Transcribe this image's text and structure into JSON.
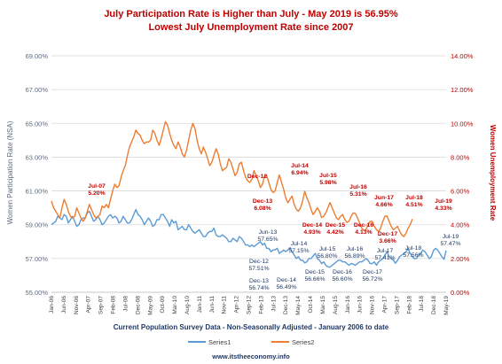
{
  "chart_data": {
    "type": "line",
    "title": "July Participation Rate is Higher than July - May 2019 is 56.95%",
    "subtitle": "Lowest July Unemployment Rate since 2007",
    "xlabel": "Current Population Survey Data - Non-Seasonally Adjusted - January 2006 to date",
    "ylabel_left": "Women Participation Rate (NSA)",
    "ylabel_right": "Women Unemployment Rate",
    "source_note": "www.itstheeconomy.info",
    "colors": {
      "title": "#c00000",
      "series1": "#5b9bd5",
      "series2": "#ed7d31",
      "annotation_blue": "#1f3864",
      "annotation_red": "#c00000",
      "grid": "#d9d9d9",
      "axis_left": "#5a6b86",
      "axis_right": "#c00000"
    },
    "y_left": {
      "min": 55,
      "max": 69,
      "ticks": [
        "55.00%",
        "57.00%",
        "59.00%",
        "61.00%",
        "63.00%",
        "65.00%",
        "67.00%",
        "69.00%"
      ]
    },
    "y_right": {
      "min": 0,
      "max": 14,
      "ticks": [
        "0.00%",
        "2.00%",
        "4.00%",
        "6.00%",
        "8.00%",
        "10.00%",
        "12.00%",
        "14.00%"
      ]
    },
    "x_ticks": [
      "Jan-06",
      "Jun-06",
      "Nov-06",
      "Apr-07",
      "Sep-07",
      "Feb-08",
      "Jul-08",
      "Dec-08",
      "May-09",
      "Oct-09",
      "Mar-10",
      "Aug-10",
      "Jan-11",
      "Jun-11",
      "Nov-11",
      "Apr-12",
      "Sep-12",
      "Feb-13",
      "Jul-13",
      "Dec-13",
      "May-14",
      "Oct-14",
      "Mar-15",
      "Aug-15",
      "Jan-16",
      "Jun-16",
      "Nov-16",
      "Apr-17",
      "Sep-17",
      "Feb-18",
      "Jul-18",
      "Dec-18",
      "May-19"
    ],
    "legend": [
      "Series1",
      "Series2"
    ],
    "series": [
      {
        "name": "Series1",
        "axis": "left",
        "values": [
          59.0,
          59.1,
          59.2,
          59.5,
          59.4,
          59.3,
          59.6,
          59.5,
          59.1,
          59.3,
          59.5,
          59.2,
          58.9,
          59.0,
          59.3,
          59.4,
          59.4,
          59.7,
          59.8,
          59.5,
          59.2,
          59.3,
          59.5,
          59.3,
          59.0,
          59.1,
          59.3,
          59.5,
          59.6,
          59.4,
          59.5,
          59.4,
          59.1,
          59.2,
          59.5,
          59.3,
          59.1,
          59.1,
          59.3,
          59.6,
          59.9,
          59.6,
          59.5,
          59.3,
          59.0,
          59.2,
          59.4,
          59.2,
          58.9,
          59.0,
          59.3,
          59.3,
          59.6,
          59.6,
          59.4,
          59.2,
          58.9,
          59.3,
          59.1,
          59.2,
          58.7,
          58.8,
          58.9,
          58.7,
          58.7,
          59.0,
          58.8,
          58.6,
          58.5,
          58.6,
          58.7,
          58.5,
          58.3,
          58.3,
          58.5,
          58.6,
          58.6,
          58.8,
          58.4,
          58.3,
          58.3,
          58.4,
          58.3,
          58.2,
          58.0,
          58.0,
          58.2,
          58.1,
          58.0,
          58.3,
          58.2,
          58.0,
          57.8,
          57.8,
          57.7,
          57.8,
          57.7,
          57.8,
          57.9,
          58.0,
          57.8,
          57.9,
          57.6,
          57.6,
          57.4,
          57.5,
          57.51,
          57.6,
          57.3,
          57.4,
          57.5,
          57.4,
          57.5,
          57.65,
          57.4,
          57.2,
          57.0,
          57.1,
          56.9,
          56.9,
          56.74,
          56.8,
          57.0,
          57.0,
          57.15,
          57.3,
          57.0,
          56.9,
          56.7,
          56.8,
          56.6,
          56.5,
          56.49,
          56.6,
          56.7,
          56.8,
          56.9,
          56.9,
          56.8,
          56.8,
          56.7,
          56.6,
          56.7,
          56.66,
          56.6,
          56.7,
          56.8,
          56.8,
          56.89,
          57.0,
          56.9,
          56.7,
          56.7,
          56.8,
          56.6,
          56.8,
          56.9,
          57.0,
          57.2,
          57.41,
          57.1,
          57.0,
          56.9,
          56.72,
          56.9,
          57.1,
          57.2,
          57.3,
          57.4,
          57.56,
          57.3,
          57.1,
          57.0,
          57.0,
          57.2,
          57.3,
          57.5,
          57.4,
          57.2,
          57.0,
          57.1,
          57.47,
          57.6,
          57.5,
          57.3,
          57.1,
          56.95,
          57.47
        ]
      },
      {
        "name": "Series2",
        "axis": "right",
        "values": [
          5.4,
          5.0,
          4.8,
          4.6,
          4.4,
          5.0,
          5.5,
          5.2,
          4.8,
          4.5,
          4.4,
          4.5,
          5.0,
          4.7,
          4.4,
          4.2,
          4.4,
          4.8,
          5.2,
          4.9,
          4.6,
          4.4,
          4.5,
          4.6,
          5.1,
          5.0,
          5.2,
          5.0,
          5.5,
          6.0,
          6.4,
          6.2,
          6.3,
          6.8,
          7.2,
          7.5,
          8.1,
          8.6,
          8.9,
          9.2,
          9.6,
          9.4,
          9.3,
          9.0,
          8.8,
          8.9,
          8.9,
          9.0,
          9.6,
          9.4,
          9.0,
          8.7,
          9.1,
          9.6,
          10.1,
          9.9,
          9.4,
          9.0,
          8.7,
          8.5,
          8.9,
          8.6,
          8.2,
          8.0,
          8.4,
          9.0,
          9.6,
          10.0,
          9.7,
          9.0,
          8.5,
          8.2,
          8.6,
          8.3,
          7.9,
          7.5,
          7.7,
          8.1,
          8.5,
          8.2,
          7.6,
          7.2,
          7.3,
          7.4,
          7.9,
          7.7,
          7.3,
          6.9,
          7.1,
          7.6,
          7.7,
          7.2,
          6.8,
          6.6,
          6.5,
          6.7,
          7.2,
          6.9,
          6.6,
          6.2,
          6.4,
          6.9,
          6.9,
          6.5,
          6.08,
          5.9,
          6.0,
          6.5,
          6.94,
          6.5,
          6.1,
          5.6,
          5.3,
          5.5,
          5.7,
          5.2,
          4.93,
          4.8,
          5.0,
          5.4,
          5.98,
          5.6,
          5.3,
          4.9,
          4.6,
          4.8,
          5.0,
          4.8,
          4.42,
          4.5,
          4.7,
          5.0,
          5.31,
          5.0,
          4.7,
          4.4,
          4.3,
          4.5,
          4.6,
          4.3,
          4.13,
          4.2,
          4.5,
          4.7,
          4.66,
          4.4,
          4.1,
          3.8,
          3.66,
          3.7,
          4.0,
          4.2,
          4.2,
          3.9,
          3.7,
          3.6,
          3.8,
          4.2,
          4.5,
          4.51,
          4.2,
          3.9,
          3.7,
          3.8,
          3.9,
          3.6,
          3.4,
          3.3,
          3.5,
          3.8,
          4.0,
          4.33
        ]
      }
    ],
    "annotations": [
      {
        "label": "Jul-07",
        "value": "5.20%",
        "series": "Series2"
      },
      {
        "label": "Dec-12",
        "value": "",
        "series": "Series2"
      },
      {
        "label": "Dec-13",
        "value": "6.08%",
        "series": "Series2"
      },
      {
        "label": "Jul-14",
        "value": "6.94%",
        "series": "Series2"
      },
      {
        "label": "Dec-14",
        "value": "4.93%",
        "series": "Series2"
      },
      {
        "label": "Jul-15",
        "value": "5.98%",
        "series": "Series2"
      },
      {
        "label": "Dec-15",
        "value": "4.42%",
        "series": "Series2"
      },
      {
        "label": "Jul-16",
        "value": "5.31%",
        "series": "Series2"
      },
      {
        "label": "Dec-16",
        "value": "4.13%",
        "series": "Series2"
      },
      {
        "label": "Jun-17",
        "value": "4.66%",
        "series": "Series2"
      },
      {
        "label": "Dec-17",
        "value": "3.66%",
        "series": "Series2"
      },
      {
        "label": "Jul-18",
        "value": "4.51%",
        "series": "Series2"
      },
      {
        "label": "Jul-19",
        "value": "4.33%",
        "series": "Series2"
      },
      {
        "label": "Jun-13",
        "value": "57.65%",
        "series": "Series1"
      },
      {
        "label": "Dec-12",
        "value": "57.51%",
        "series": "Series1"
      },
      {
        "label": "Jul-14",
        "value": "57.15%",
        "series": "Series1"
      },
      {
        "label": "Dec-13",
        "value": "56.74%",
        "series": "Series1"
      },
      {
        "label": "Dec-14",
        "value": "56.49%",
        "series": "Series1"
      },
      {
        "label": "Jul-15",
        "value": "56.80%",
        "series": "Series1"
      },
      {
        "label": "Dec-15",
        "value": "56.66%",
        "series": "Series1"
      },
      {
        "label": "Jul-16",
        "value": "56.89%",
        "series": "Series1"
      },
      {
        "label": "Dec-16",
        "value": "56.60%",
        "series": "Series1"
      },
      {
        "label": "Jul-17",
        "value": "57.41%",
        "series": "Series1"
      },
      {
        "label": "Dec-17",
        "value": "56.72%",
        "series": "Series1"
      },
      {
        "label": "Jul-18",
        "value": "57.56%",
        "series": "Series1"
      },
      {
        "label": "Jul-19",
        "value": "57.47%",
        "series": "Series1"
      }
    ]
  }
}
